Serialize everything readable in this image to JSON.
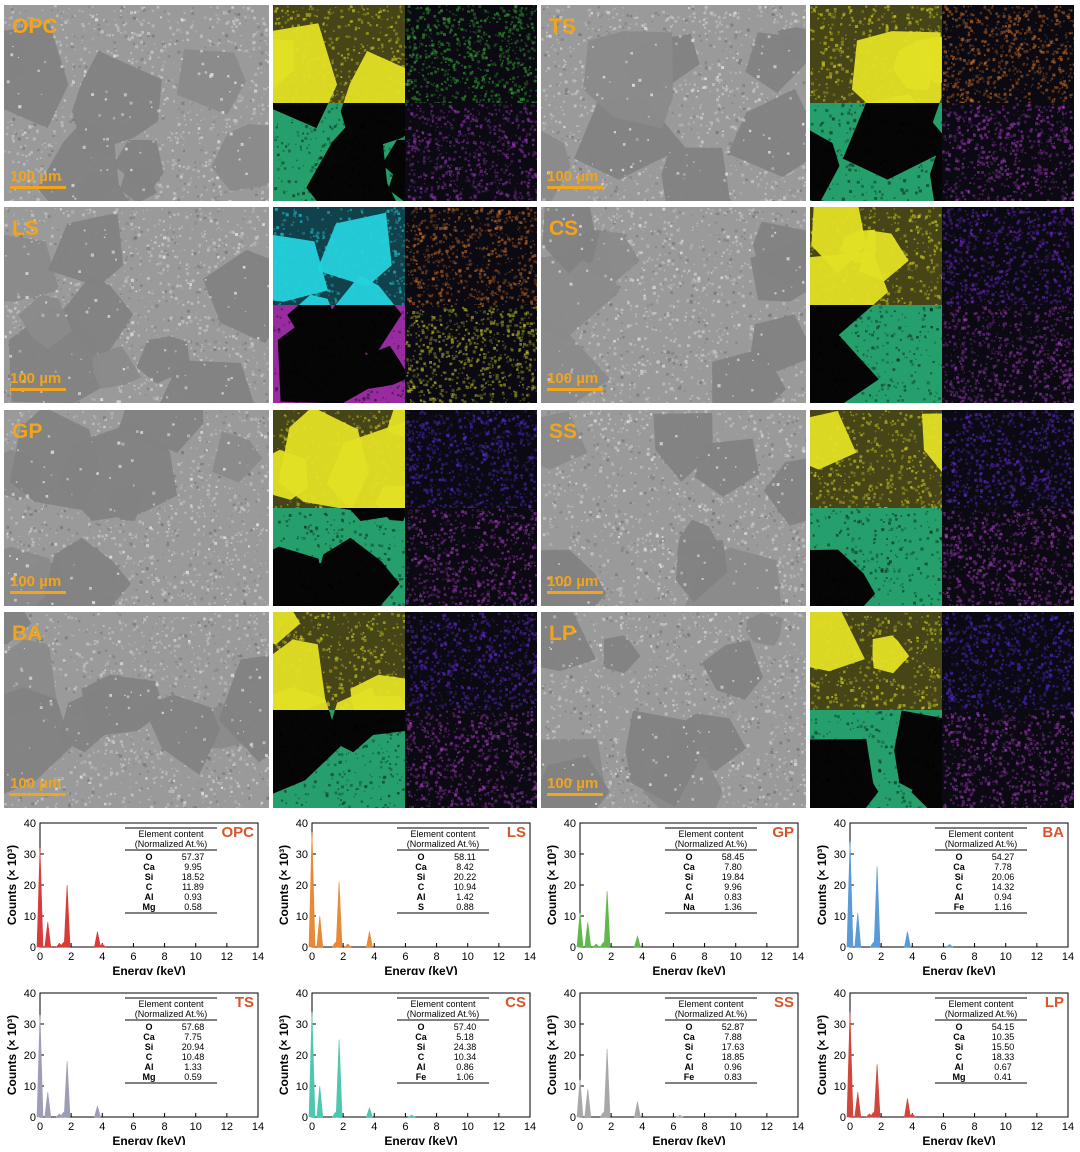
{
  "scale_bar": "100 µm",
  "panels": [
    {
      "label": "OPC",
      "maps": [
        "#e3e024",
        "#3cc43a",
        "#2fd38b",
        "#a33cc6"
      ]
    },
    {
      "label": "TS",
      "maps": [
        "#e3e024",
        "#e07a2c",
        "#2fd38b",
        "#b23ed1"
      ]
    },
    {
      "label": "LS",
      "maps": [
        "#25d2dc",
        "#e07a2c",
        "#c837cf",
        "#d9d62c"
      ]
    },
    {
      "label": "CS",
      "maps": [
        "#e3e024",
        "#7a2ee0",
        "#2fd38b",
        "#a33cc6"
      ]
    },
    {
      "label": "GP",
      "maps": [
        "#e3e024",
        "#5a2ee0",
        "#2fd38b",
        "#b23ed1"
      ]
    },
    {
      "label": "SS",
      "maps": [
        "#e3e024",
        "#6a2ee0",
        "#2fd38b",
        "#b23ed1"
      ]
    },
    {
      "label": "BA",
      "maps": [
        "#e3e024",
        "#6a2ee0",
        "#2fd38b",
        "#b23ed1"
      ]
    },
    {
      "label": "LP",
      "maps": [
        "#e3e024",
        "#5a2ee0",
        "#2fd38b",
        "#b23ed1"
      ]
    }
  ],
  "chart_data": [
    {
      "type": "bar",
      "label": "OPC",
      "color": "#d93a3a",
      "xlabel": "Energy (keV)",
      "ylabel": "Counts (× 10³)",
      "xlim": [
        0,
        14
      ],
      "ylim": [
        0,
        40
      ],
      "peaks": [
        [
          0.0,
          32
        ],
        [
          0.5,
          8
        ],
        [
          1.25,
          1.2
        ],
        [
          1.5,
          1.5
        ],
        [
          1.74,
          20
        ],
        [
          3.69,
          5
        ],
        [
          4.0,
          1
        ]
      ],
      "table": {
        "header": [
          "Element content",
          "(Normalized At.%)"
        ],
        "rows": [
          [
            "O",
            "57.37"
          ],
          [
            "Ca",
            "9.95"
          ],
          [
            "Si",
            "18.52"
          ],
          [
            "C",
            "11.89"
          ],
          [
            "Al",
            "0.93"
          ],
          [
            "Mg",
            "0.58"
          ]
        ]
      }
    },
    {
      "type": "bar",
      "label": "LS",
      "color": "#e8893a",
      "xlabel": "Energy (keV)",
      "ylabel": "Counts (× 10³)",
      "xlim": [
        0,
        14
      ],
      "ylim": [
        0,
        40
      ],
      "peaks": [
        [
          0.0,
          37
        ],
        [
          0.5,
          10
        ],
        [
          1.5,
          1.5
        ],
        [
          1.74,
          21
        ],
        [
          2.3,
          1
        ],
        [
          3.69,
          5
        ]
      ],
      "table": {
        "header": [
          "Element content",
          "(Normalized At.%)"
        ],
        "rows": [
          [
            "O",
            "58.11"
          ],
          [
            "Ca",
            "8.42"
          ],
          [
            "Si",
            "20.22"
          ],
          [
            "C",
            "10.94"
          ],
          [
            "Al",
            "1.42"
          ],
          [
            "S",
            "0.88"
          ]
        ]
      }
    },
    {
      "type": "bar",
      "label": "GP",
      "color": "#5fb84a",
      "xlabel": "Energy (keV)",
      "ylabel": "Counts (× 10³)",
      "xlim": [
        0,
        14
      ],
      "ylim": [
        0,
        40
      ],
      "peaks": [
        [
          0.0,
          11
        ],
        [
          0.5,
          8
        ],
        [
          1.04,
          1
        ],
        [
          1.5,
          1.5
        ],
        [
          1.74,
          18
        ],
        [
          3.69,
          3.5
        ]
      ],
      "table": {
        "header": [
          "Element content",
          "(Normalized At.%)"
        ],
        "rows": [
          [
            "O",
            "58.45"
          ],
          [
            "Ca",
            "7.80"
          ],
          [
            "Si",
            "19.84"
          ],
          [
            "C",
            "9.96"
          ],
          [
            "Al",
            "0.83"
          ],
          [
            "Na",
            "1.36"
          ]
        ]
      }
    },
    {
      "type": "bar",
      "label": "BA",
      "color": "#5a9ad6",
      "xlabel": "Energy (keV)",
      "ylabel": "Counts (× 10³)",
      "xlim": [
        0,
        14
      ],
      "ylim": [
        0,
        40
      ],
      "peaks": [
        [
          0.0,
          34
        ],
        [
          0.5,
          11
        ],
        [
          1.5,
          1.5
        ],
        [
          1.74,
          26
        ],
        [
          3.69,
          5
        ],
        [
          6.4,
          0.8
        ]
      ],
      "table": {
        "header": [
          "Element content",
          "(Normalized At.%)"
        ],
        "rows": [
          [
            "O",
            "54.27"
          ],
          [
            "Ca",
            "7.78"
          ],
          [
            "Si",
            "20.06"
          ],
          [
            "C",
            "14.32"
          ],
          [
            "Al",
            "0.94"
          ],
          [
            "Fe",
            "1.16"
          ]
        ]
      }
    },
    {
      "type": "bar",
      "label": "TS",
      "color": "#9d9db5",
      "xlabel": "Energy (keV)",
      "ylabel": "Counts (× 10³)",
      "xlim": [
        0,
        14
      ],
      "ylim": [
        0,
        40
      ],
      "peaks": [
        [
          0.0,
          33
        ],
        [
          0.5,
          8
        ],
        [
          1.25,
          1
        ],
        [
          1.5,
          1.5
        ],
        [
          1.74,
          18
        ],
        [
          3.69,
          3.5
        ]
      ],
      "table": {
        "header": [
          "Element content",
          "(Normalized At.%)"
        ],
        "rows": [
          [
            "O",
            "57.68"
          ],
          [
            "Ca",
            "7.75"
          ],
          [
            "Si",
            "20.94"
          ],
          [
            "C",
            "10.48"
          ],
          [
            "Al",
            "1.33"
          ],
          [
            "Mg",
            "0.59"
          ]
        ]
      }
    },
    {
      "type": "bar",
      "label": "CS",
      "color": "#4fc7b0",
      "xlabel": "Energy (keV)",
      "ylabel": "Counts (× 10³)",
      "xlim": [
        0,
        14
      ],
      "ylim": [
        0,
        40
      ],
      "peaks": [
        [
          0.0,
          34
        ],
        [
          0.5,
          10
        ],
        [
          1.5,
          1.5
        ],
        [
          1.74,
          25
        ],
        [
          3.69,
          3
        ],
        [
          6.4,
          0.6
        ]
      ],
      "table": {
        "header": [
          "Element content",
          "(Normalized At.%)"
        ],
        "rows": [
          [
            "O",
            "57.40"
          ],
          [
            "Ca",
            "5.18"
          ],
          [
            "Si",
            "24.38"
          ],
          [
            "C",
            "10.34"
          ],
          [
            "Al",
            "0.86"
          ],
          [
            "Fe",
            "1.06"
          ]
        ]
      }
    },
    {
      "type": "bar",
      "label": "SS",
      "color": "#a8a8a8",
      "xlabel": "Energy (keV)",
      "ylabel": "Counts (× 10³)",
      "xlim": [
        0,
        14
      ],
      "ylim": [
        0,
        40
      ],
      "peaks": [
        [
          0.0,
          12
        ],
        [
          0.5,
          9
        ],
        [
          1.5,
          1.5
        ],
        [
          1.74,
          22
        ],
        [
          3.69,
          5
        ],
        [
          6.4,
          0.6
        ]
      ],
      "table": {
        "header": [
          "Element content",
          "(Normalized At.%)"
        ],
        "rows": [
          [
            "O",
            "52.87"
          ],
          [
            "Ca",
            "7.88"
          ],
          [
            "Si",
            "17.63"
          ],
          [
            "C",
            "18.85"
          ],
          [
            "Al",
            "0.96"
          ],
          [
            "Fe",
            "0.83"
          ]
        ]
      }
    },
    {
      "type": "bar",
      "label": "LP",
      "color": "#d0463a",
      "xlabel": "Energy (keV)",
      "ylabel": "Counts (× 10³)",
      "xlim": [
        0,
        14
      ],
      "ylim": [
        0,
        40
      ],
      "peaks": [
        [
          0.0,
          34
        ],
        [
          0.5,
          8
        ],
        [
          1.25,
          1
        ],
        [
          1.5,
          1.5
        ],
        [
          1.74,
          17
        ],
        [
          3.69,
          6
        ],
        [
          4.0,
          1
        ]
      ],
      "table": {
        "header": [
          "Element content",
          "(Normalized At.%)"
        ],
        "rows": [
          [
            "O",
            "54.15"
          ],
          [
            "Ca",
            "10.35"
          ],
          [
            "Si",
            "15.50"
          ],
          [
            "C",
            "18.33"
          ],
          [
            "Al",
            "0.67"
          ],
          [
            "Mg",
            "0.41"
          ]
        ]
      }
    }
  ]
}
